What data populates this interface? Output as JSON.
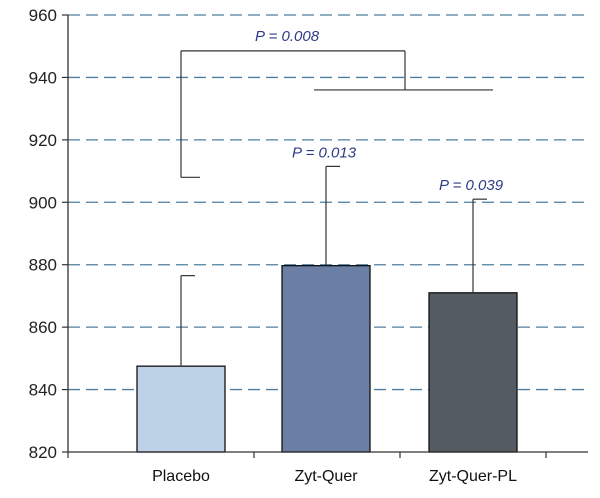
{
  "chart_data": {
    "type": "bar",
    "title": "",
    "xlabel": "",
    "ylabel": "",
    "ylim": [
      820,
      960
    ],
    "yticks": [
      820,
      840,
      860,
      880,
      900,
      920,
      940,
      960
    ],
    "grid": "horizontal-dashed",
    "categories": [
      "Placebo",
      "Zyt-Quer",
      "Zyt-Quer-PL"
    ],
    "values": [
      847.5,
      879.7,
      871.0
    ],
    "error_upper": [
      876.5,
      911.5,
      901.0
    ],
    "bar_colors": [
      "#bdd2e6",
      "#6a7fa3",
      "#555b62"
    ],
    "grid_color": "#4f7f9e",
    "p_value_color": "#2f3a87",
    "annotations": {
      "bar_p_values": [
        null,
        "P = 0.013",
        "P = 0.039"
      ],
      "bracket": {
        "label": "P = 0.008",
        "left_group": "Placebo",
        "right_groups": [
          "Zyt-Quer",
          "Zyt-Quer-PL"
        ],
        "top_level": 948.5,
        "left_drop_to": 908,
        "right_drop_to": 936
      }
    }
  }
}
